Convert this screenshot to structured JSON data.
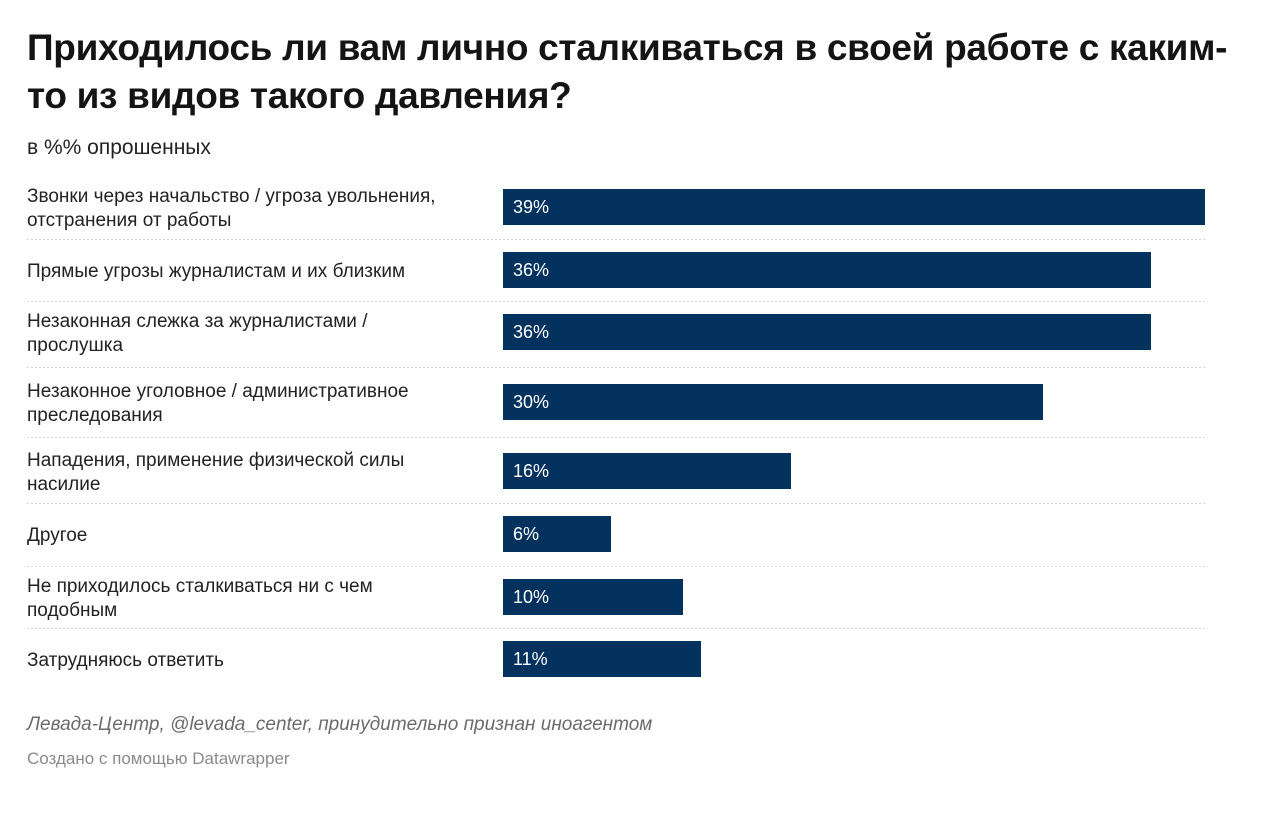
{
  "header": {
    "title": "Приходилось ли вам лично сталкиваться в своей работе с каким-то из видов такого давления?",
    "subtitle": "в %% опрошенных"
  },
  "footer": {
    "source": "Левада-Центр, @levada_center, принудительно признан иноагентом",
    "credit": "Создано с помощью Datawrapper"
  },
  "colors": {
    "bar": "#04325f",
    "divider": "#d6d6d6"
  },
  "chart_data": {
    "type": "bar",
    "orientation": "horizontal",
    "categories": [
      [
        "Звонки через начальство / угроза увольнения,",
        "отстранения от работы"
      ],
      [
        "Прямые угрозы журналистам и их близким"
      ],
      [
        "Незаконная слежка за журналистами /",
        "прослушка"
      ],
      [
        "Незаконное уголовное / административное",
        "преследования"
      ],
      [
        "Нападения, применение физической силы",
        "насилие"
      ],
      [
        "Другое"
      ],
      [
        "Не приходилось сталкиваться ни с чем",
        "подобным"
      ],
      [
        "Затрудняюсь ответить"
      ]
    ],
    "values": [
      39,
      36,
      36,
      30,
      16,
      6,
      10,
      11
    ],
    "value_labels": [
      "39%",
      "36%",
      "36%",
      "30%",
      "16%",
      "6%",
      "10%",
      "11%"
    ],
    "xlim": [
      0,
      39
    ],
    "grid": false,
    "legend": "none"
  }
}
